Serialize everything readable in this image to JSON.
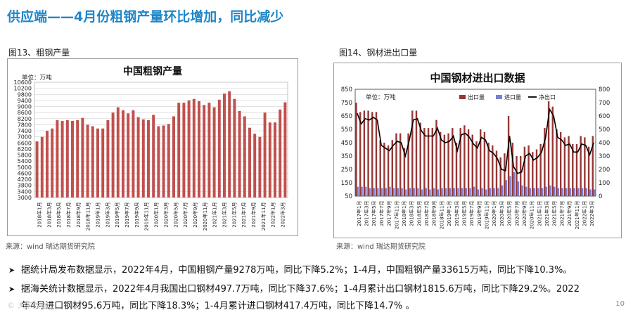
{
  "page_title": "供应端——4月份粗钢产量环比增加，同比减少",
  "fig13": {
    "caption": "图13、粗钢产量",
    "source": "来源：wind   瑞达期货研究院"
  },
  "fig14": {
    "caption": "图14、钢材进出口量",
    "source": "来源：wind   瑞达期货研究院"
  },
  "bullets": [
    "据统计局发布数据显示，2022年4月，中国粗钢产量9278万吨，同比下降5.2%；1-4月，中国粗钢产量33615万吨，同比下降10.3%。",
    "据海关统计数据显示，2022年4月我国出口钢材497.7万吨，同比下降37.6%；1-4月累计出口钢材1815.6万吨，同比下降29.2%。2022",
    "年4月进口钢材95.6万吨，同比下降18.3%；1-4月累计进口钢材417.4万吨，同比下降14.7% 。"
  ],
  "watermark": "© 大宗数据",
  "page_number": "10",
  "colors": {
    "title": "#1f86c8",
    "bar_red": "#c0504d",
    "bar_export": "#953735",
    "bar_import": "#7b7fd0",
    "net_line": "#000000"
  },
  "chart_data": [
    {
      "type": "bar",
      "title": "中国粗钢产量",
      "unit_label": "单位：万吨",
      "ylim": [
        3000,
        10600
      ],
      "yticks": [
        3000,
        3400,
        3800,
        4200,
        4600,
        5000,
        5400,
        5800,
        6200,
        6600,
        7000,
        7400,
        7800,
        8200,
        8600,
        9000,
        9400,
        9800,
        10200,
        10600
      ],
      "xtick_labels": [
        "2018年1月",
        "2018年3月",
        "2018年5月",
        "2018年7月",
        "2018年9月",
        "2018年11月",
        "2019年1月",
        "2019年3月",
        "2019年5月",
        "2019年7月",
        "2019年9月",
        "2019年11月",
        "2020年1月",
        "2020年3月",
        "2020年5月",
        "2020年7月",
        "2020年9月",
        "2020年11月",
        "2021年1月",
        "2021年3月",
        "2021年5月",
        "2021年7月",
        "2021年9月",
        "2021年11月",
        "2022年1月",
        "2022年3月"
      ],
      "values": [
        6700,
        7000,
        7400,
        7550,
        8100,
        8050,
        8100,
        8050,
        8100,
        8250,
        7800,
        7700,
        7550,
        7550,
        8100,
        8600,
        8950,
        8750,
        8550,
        8750,
        8300,
        8150,
        8100,
        8450,
        7700,
        7750,
        7850,
        8350,
        9250,
        9250,
        9400,
        9500,
        9350,
        9100,
        9250,
        8950,
        9450,
        9850,
        10000,
        9500,
        8700,
        8350,
        7600,
        7200,
        7000,
        8600,
        7950,
        7950,
        8800,
        9278
      ],
      "grid": true
    },
    {
      "type": "bar+line",
      "title": "中国钢材进出口数据",
      "unit_label": "单位：万吨",
      "legend": [
        "出口量",
        "进口量",
        "净出口"
      ],
      "y_left": [
        50,
        150,
        250,
        350,
        450,
        550,
        650,
        750,
        850
      ],
      "y_right": [
        0,
        100,
        200,
        300,
        400,
        500,
        600,
        700,
        800
      ],
      "xtick_labels": [
        "2017年1月",
        "2017年3月",
        "2017年5月",
        "2017年7月",
        "2017年9月",
        "2017年11月",
        "2018年1月",
        "2018年3月",
        "2018年5月",
        "2018年7月",
        "2018年9月",
        "2018年11月",
        "2019年1月",
        "2019年3月",
        "2019年5月",
        "2019年7月",
        "2019年9月",
        "2019年11月",
        "2020年1月",
        "2020年3月",
        "2020年5月",
        "2020年7月",
        "2020年9月",
        "2020年11月",
        "2021年1月",
        "2021年3月",
        "2021年5月",
        "2021年7月",
        "2021年9月",
        "2021年11月",
        "2022年1月",
        "2022年3月"
      ],
      "series": [
        {
          "name": "出口量",
          "values": [
            750,
            680,
            690,
            690,
            680,
            680,
            470,
            450,
            430,
            470,
            520,
            520,
            410,
            520,
            690,
            690,
            600,
            560,
            560,
            560,
            620,
            530,
            510,
            520,
            560,
            450,
            560,
            580,
            550,
            510,
            460,
            550,
            530,
            450,
            430,
            390,
            340,
            370,
            650,
            450,
            350,
            350,
            420,
            430,
            380,
            400,
            440,
            560,
            760,
            720,
            550,
            530,
            490,
            500,
            440,
            440,
            500,
            490,
            420,
            500
          ]
        },
        {
          "name": "进口量",
          "values": [
            120,
            120,
            120,
            110,
            110,
            110,
            110,
            110,
            120,
            110,
            110,
            110,
            100,
            110,
            110,
            110,
            100,
            110,
            100,
            110,
            100,
            110,
            110,
            110,
            110,
            110,
            110,
            110,
            110,
            120,
            100,
            110,
            100,
            110,
            110,
            110,
            130,
            170,
            200,
            230,
            160,
            130,
            120,
            110,
            110,
            110,
            110,
            120,
            130,
            120,
            110,
            110,
            110,
            110,
            110,
            110,
            110,
            110,
            100,
            100
          ]
        },
        {
          "name": "净出口",
          "values": [
            620,
            540,
            580,
            570,
            590,
            570,
            380,
            360,
            340,
            380,
            410,
            400,
            300,
            420,
            570,
            580,
            490,
            450,
            450,
            450,
            510,
            420,
            400,
            410,
            450,
            340,
            460,
            470,
            440,
            390,
            360,
            440,
            420,
            340,
            320,
            280,
            200,
            190,
            450,
            220,
            170,
            180,
            300,
            320,
            270,
            290,
            330,
            440,
            650,
            600,
            440,
            420,
            380,
            390,
            330,
            330,
            390,
            380,
            310,
            400
          ]
        }
      ]
    }
  ]
}
